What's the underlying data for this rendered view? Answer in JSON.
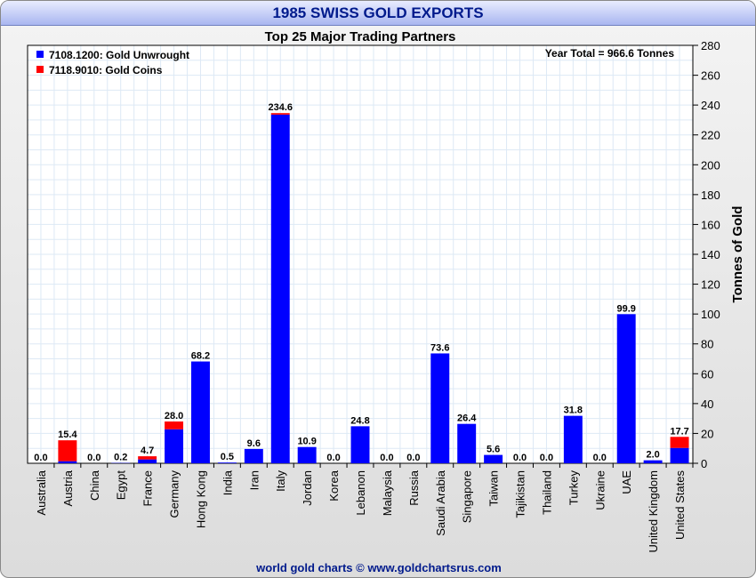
{
  "chart_data": {
    "type": "bar",
    "stacked": true,
    "title": "1985 SWISS GOLD EXPORTS",
    "subtitle": "Top 25 Major Trading Partners",
    "annotation": "Year Total = 966.6 Tonnes",
    "ylabel": "Tonnes of Gold",
    "xlabel": "",
    "ylim": [
      0,
      280
    ],
    "yticks": [
      0,
      20,
      40,
      60,
      80,
      100,
      120,
      140,
      160,
      180,
      200,
      220,
      240,
      260,
      280
    ],
    "grid": true,
    "legend_position": "top-left",
    "categories": [
      "Australia",
      "Austria",
      "China",
      "Egypt",
      "France",
      "Germany",
      "Hong Kong",
      "India",
      "Iran",
      "Italy",
      "Jordan",
      "Korea",
      "Lebanon",
      "Malaysia",
      "Russia",
      "Saudi Arabia",
      "Singapore",
      "Taiwan",
      "Tajikistan",
      "Thailand",
      "Turkey",
      "Ukraine",
      "UAE",
      "United Kingdom",
      "United States"
    ],
    "series": [
      {
        "name": "7108.1200: Gold Unwrought",
        "color": "#0000ff",
        "values": [
          0,
          1.4,
          0,
          0.2,
          2.6,
          22.8,
          68.2,
          0.5,
          9.6,
          233.6,
          10.9,
          0,
          24.8,
          0,
          0,
          73.6,
          26.4,
          5.6,
          0,
          0,
          31.8,
          0,
          99.9,
          2.0,
          10.3
        ]
      },
      {
        "name": "7118.9010: Gold Coins",
        "color": "#ff0000",
        "values": [
          0,
          14.0,
          0,
          0,
          2.1,
          5.2,
          0,
          0,
          0,
          1.0,
          0,
          0,
          0,
          0,
          0,
          0,
          0,
          0,
          0,
          0,
          0,
          0,
          0,
          0,
          7.4
        ]
      }
    ],
    "totals": [
      "0.0",
      "15.4",
      "0.0",
      "0.2",
      "4.7",
      "28.0",
      "68.2",
      "0.5",
      "9.6",
      "234.6",
      "10.9",
      "0.0",
      "24.8",
      "0.0",
      "0.0",
      "73.6",
      "26.4",
      "5.6",
      "0.0",
      "0.0",
      "31.8",
      "0.0",
      "99.9",
      "2.0",
      "17.7"
    ]
  },
  "footer": "world gold charts © www.goldchartsrus.com"
}
